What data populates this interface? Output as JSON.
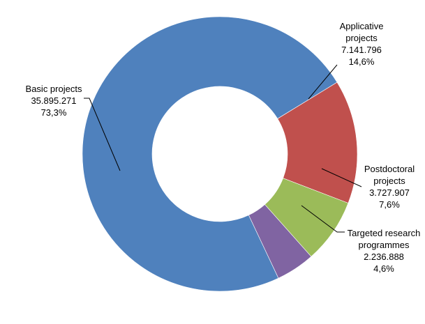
{
  "chart_data": {
    "type": "pie",
    "variant": "donut",
    "title": "",
    "legend": "none",
    "series": [
      {
        "values": [
          35895271,
          7141796,
          3727907,
          2236888
        ],
        "colors": [
          "#4F81BD",
          "#C0504D",
          "#9BBB59",
          "#8064A2"
        ]
      }
    ],
    "labels": [
      {
        "category": [
          "Basic projects"
        ],
        "value": "35.895.271",
        "percent": "73,3%"
      },
      {
        "category": [
          "Applicative",
          "projects"
        ],
        "value": "7.141.796",
        "percent": "14,6%"
      },
      {
        "category": [
          "Postdoctoral",
          "projects"
        ],
        "value": "3.727.907",
        "percent": "7,6%"
      },
      {
        "category": [
          "Targeted research",
          "programmes"
        ],
        "value": "2.236.888",
        "percent": "4,6%"
      }
    ]
  }
}
